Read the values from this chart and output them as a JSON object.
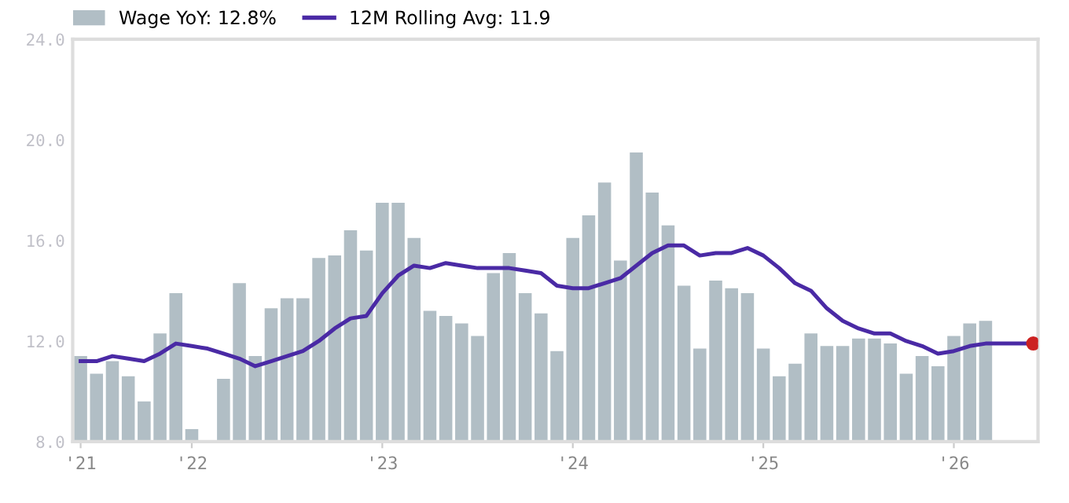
{
  "chart_data": {
    "type": "bar",
    "categories": [
      "'21",
      null,
      null,
      null,
      null,
      null,
      null,
      "'22",
      null,
      null,
      null,
      null,
      null,
      null,
      null,
      null,
      null,
      null,
      null,
      "'23",
      null,
      null,
      null,
      null,
      null,
      null,
      null,
      null,
      null,
      null,
      null,
      "'24",
      null,
      null,
      null,
      null,
      null,
      null,
      null,
      null,
      null,
      null,
      null,
      "'25",
      null,
      null,
      null,
      null,
      null,
      null,
      null,
      null,
      null,
      null,
      null,
      "'26",
      null,
      null,
      null,
      null,
      null
    ],
    "series": [
      {
        "name": "Wage YoY: 12.8%",
        "color": "#b1bec5",
        "values": [
          11.4,
          10.7,
          11.2,
          10.6,
          9.6,
          12.3,
          13.9,
          8.5,
          null,
          10.5,
          14.3,
          11.4,
          13.3,
          13.7,
          13.7,
          15.3,
          15.4,
          16.4,
          15.6,
          17.5,
          17.5,
          16.1,
          13.2,
          13.0,
          12.7,
          12.2,
          14.7,
          15.5,
          13.9,
          13.1,
          11.6,
          16.1,
          17.0,
          18.3,
          15.2,
          19.5,
          17.9,
          16.6,
          14.2,
          11.7,
          14.4,
          14.1,
          13.9,
          11.7,
          10.6,
          11.1,
          12.3,
          11.8,
          11.8,
          12.1,
          12.1,
          11.9,
          10.7,
          11.4,
          11.0,
          12.2,
          12.7,
          12.8,
          null,
          null,
          null
        ]
      },
      {
        "name": "12M Rolling Avg: 11.9",
        "type": "line",
        "color": "#4a2aa5",
        "values": [
          11.2,
          11.2,
          11.4,
          11.3,
          11.2,
          11.5,
          11.9,
          11.8,
          11.7,
          11.5,
          11.3,
          11.0,
          11.2,
          11.4,
          11.6,
          12.0,
          12.5,
          12.9,
          13.0,
          13.9,
          14.6,
          15.0,
          14.9,
          15.1,
          15.0,
          14.9,
          14.9,
          14.9,
          14.8,
          14.7,
          14.2,
          14.1,
          14.1,
          14.3,
          14.5,
          15.0,
          15.5,
          15.8,
          15.8,
          15.4,
          15.5,
          15.5,
          15.7,
          15.4,
          14.9,
          14.3,
          14.0,
          13.3,
          12.8,
          12.5,
          12.3,
          12.3,
          12.0,
          11.8,
          11.5,
          11.6,
          11.8,
          11.9,
          11.9,
          11.9,
          11.9
        ]
      },
      {
        "type": "scatter",
        "color": "#cc2222",
        "marker": "circle",
        "values": [
          null,
          null,
          null,
          null,
          null,
          null,
          null,
          null,
          null,
          null,
          null,
          null,
          null,
          null,
          null,
          null,
          null,
          null,
          null,
          null,
          null,
          null,
          null,
          null,
          null,
          null,
          null,
          null,
          null,
          null,
          null,
          null,
          null,
          null,
          null,
          null,
          null,
          null,
          null,
          null,
          null,
          null,
          null,
          null,
          null,
          null,
          null,
          null,
          null,
          null,
          null,
          null,
          null,
          null,
          null,
          null,
          null,
          null,
          null,
          null,
          11.9
        ]
      }
    ],
    "ylim": [
      8,
      24
    ],
    "yticks": [
      {
        "value": 8,
        "label": "8.0"
      },
      {
        "value": 12,
        "label": "12.0"
      },
      {
        "value": 16,
        "label": "16.0"
      },
      {
        "value": 20,
        "label": "20.0"
      },
      {
        "value": 24,
        "label": "24.0"
      }
    ],
    "grid": false,
    "legend": "top left"
  }
}
